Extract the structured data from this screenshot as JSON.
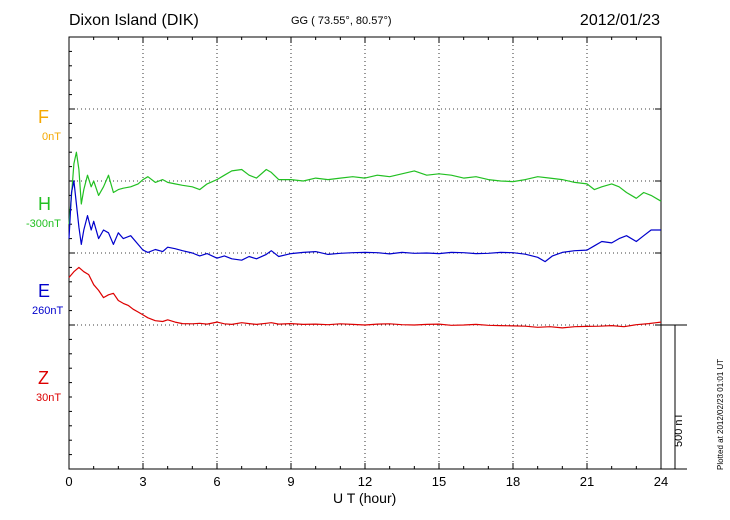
{
  "header": {
    "station": "Dixon Island (DIK)",
    "coords": "GG ( 73.55°,  80.57°)",
    "date": "2012/01/23"
  },
  "footer": {
    "plotted": "Plotted at 2012/02/23 01:01  UT"
  },
  "scale_bar": {
    "label": "500 nT",
    "value_nT": 500
  },
  "channels": [
    {
      "name": "F",
      "offset": "0nT",
      "color": "#f5a800"
    },
    {
      "name": "H",
      "offset": "-300nT",
      "color": "#22c022"
    },
    {
      "name": "E",
      "offset": "260nT",
      "color": "#0000cc"
    },
    {
      "name": "Z",
      "offset": "30nT",
      "color": "#dd0000"
    }
  ],
  "chart_data": {
    "type": "line",
    "title": "Dixon Island (DIK)",
    "xlabel": "U T (hour)",
    "ylabel": "",
    "xlim": [
      0,
      24
    ],
    "ylim": [
      -500,
      1000
    ],
    "xticks": [
      "0",
      "3",
      "6",
      "9",
      "12",
      "15",
      "18",
      "21",
      "24"
    ],
    "grid": true,
    "unit": "nT",
    "series": [
      {
        "name": "H",
        "color": "#22c022",
        "baseline_nT": 500,
        "x": [
          0,
          0.1,
          0.2,
          0.3,
          0.4,
          0.5,
          0.6,
          0.75,
          0.9,
          1.0,
          1.2,
          1.4,
          1.6,
          1.8,
          2.0,
          2.2,
          2.5,
          2.8,
          3.0,
          3.2,
          3.5,
          3.8,
          4.0,
          4.3,
          4.6,
          5.0,
          5.3,
          5.6,
          6.0,
          6.3,
          6.6,
          7.0,
          7.3,
          7.6,
          8.0,
          8.2,
          8.5,
          9.0,
          9.5,
          10.0,
          10.5,
          11.0,
          11.5,
          12.0,
          12.5,
          13.0,
          13.5,
          14.0,
          14.5,
          15.0,
          15.5,
          16.0,
          16.5,
          17.0,
          17.5,
          18.0,
          18.5,
          19.0,
          19.5,
          20.0,
          20.5,
          21.0,
          21.3,
          21.6,
          22.0,
          22.3,
          22.6,
          23.0,
          23.3,
          23.6,
          24.0
        ],
        "y": [
          350,
          450,
          560,
          600,
          540,
          420,
          470,
          520,
          480,
          500,
          450,
          480,
          520,
          460,
          470,
          475,
          480,
          490,
          505,
          515,
          495,
          505,
          495,
          490,
          485,
          480,
          470,
          490,
          505,
          520,
          535,
          540,
          520,
          510,
          540,
          530,
          505,
          505,
          500,
          510,
          505,
          510,
          515,
          510,
          520,
          515,
          525,
          535,
          520,
          525,
          520,
          510,
          515,
          505,
          500,
          498,
          505,
          515,
          510,
          505,
          495,
          490,
          470,
          480,
          490,
          480,
          460,
          440,
          460,
          450,
          430
        ]
      },
      {
        "name": "E",
        "color": "#0000cc",
        "baseline_nT": 250,
        "x": [
          0,
          0.1,
          0.2,
          0.3,
          0.4,
          0.5,
          0.6,
          0.75,
          0.9,
          1.0,
          1.2,
          1.4,
          1.6,
          1.8,
          2.0,
          2.2,
          2.5,
          2.8,
          3.0,
          3.2,
          3.5,
          3.8,
          4.0,
          4.3,
          4.6,
          5.0,
          5.3,
          5.6,
          6.0,
          6.3,
          6.6,
          7.0,
          7.3,
          7.6,
          8.0,
          8.2,
          8.5,
          9.0,
          9.5,
          10.0,
          10.5,
          11.0,
          11.5,
          12.0,
          12.5,
          13.0,
          13.5,
          14.0,
          14.5,
          15.0,
          15.5,
          16.0,
          16.5,
          17.0,
          17.5,
          18.0,
          18.5,
          19.0,
          19.3,
          19.6,
          20.0,
          20.5,
          21.0,
          21.3,
          21.6,
          22.0,
          22.3,
          22.6,
          23.0,
          23.3,
          23.6,
          24.0
        ],
        "y": [
          300,
          460,
          500,
          420,
          340,
          280,
          330,
          380,
          330,
          360,
          300,
          330,
          320,
          280,
          320,
          300,
          310,
          280,
          260,
          252,
          262,
          255,
          270,
          265,
          258,
          250,
          240,
          248,
          232,
          240,
          230,
          225,
          238,
          230,
          245,
          258,
          238,
          248,
          252,
          255,
          245,
          249,
          251,
          252,
          251,
          247,
          252,
          249,
          250,
          248,
          252,
          251,
          248,
          249,
          252,
          251,
          246,
          235,
          220,
          240,
          252,
          258,
          260,
          275,
          290,
          285,
          300,
          310,
          290,
          310,
          330,
          330
        ]
      },
      {
        "name": "Z",
        "color": "#dd0000",
        "baseline_nT": 0,
        "x": [
          0,
          0.2,
          0.4,
          0.6,
          0.8,
          1.0,
          1.2,
          1.4,
          1.6,
          1.8,
          2.0,
          2.2,
          2.4,
          2.6,
          2.8,
          3.0,
          3.2,
          3.5,
          3.8,
          4.0,
          4.3,
          4.6,
          5.0,
          5.3,
          5.6,
          6.0,
          6.3,
          6.6,
          7.0,
          7.3,
          7.6,
          8.0,
          8.2,
          8.5,
          9.0,
          9.5,
          10.0,
          10.5,
          11.0,
          11.5,
          12.0,
          12.5,
          13.0,
          13.5,
          14.0,
          14.5,
          15.0,
          15.5,
          16.0,
          16.5,
          17.0,
          17.5,
          18.0,
          18.5,
          19.0,
          19.5,
          20.0,
          20.5,
          21.0,
          21.5,
          22.0,
          22.5,
          23.0,
          23.5,
          23.8,
          24.0
        ],
        "y": [
          165,
          185,
          200,
          185,
          175,
          140,
          120,
          95,
          105,
          110,
          85,
          75,
          68,
          55,
          45,
          35,
          25,
          15,
          12,
          18,
          10,
          5,
          4,
          6,
          3,
          10,
          4,
          2,
          8,
          5,
          2,
          6,
          8,
          3,
          5,
          2,
          3,
          1,
          4,
          2,
          0,
          3,
          4,
          1,
          0,
          2,
          3,
          -1,
          0,
          2,
          -1,
          -2,
          -3,
          -4,
          -8,
          -6,
          -10,
          -6,
          -5,
          -4,
          -2,
          -6,
          1,
          5,
          8,
          10
        ]
      }
    ]
  }
}
